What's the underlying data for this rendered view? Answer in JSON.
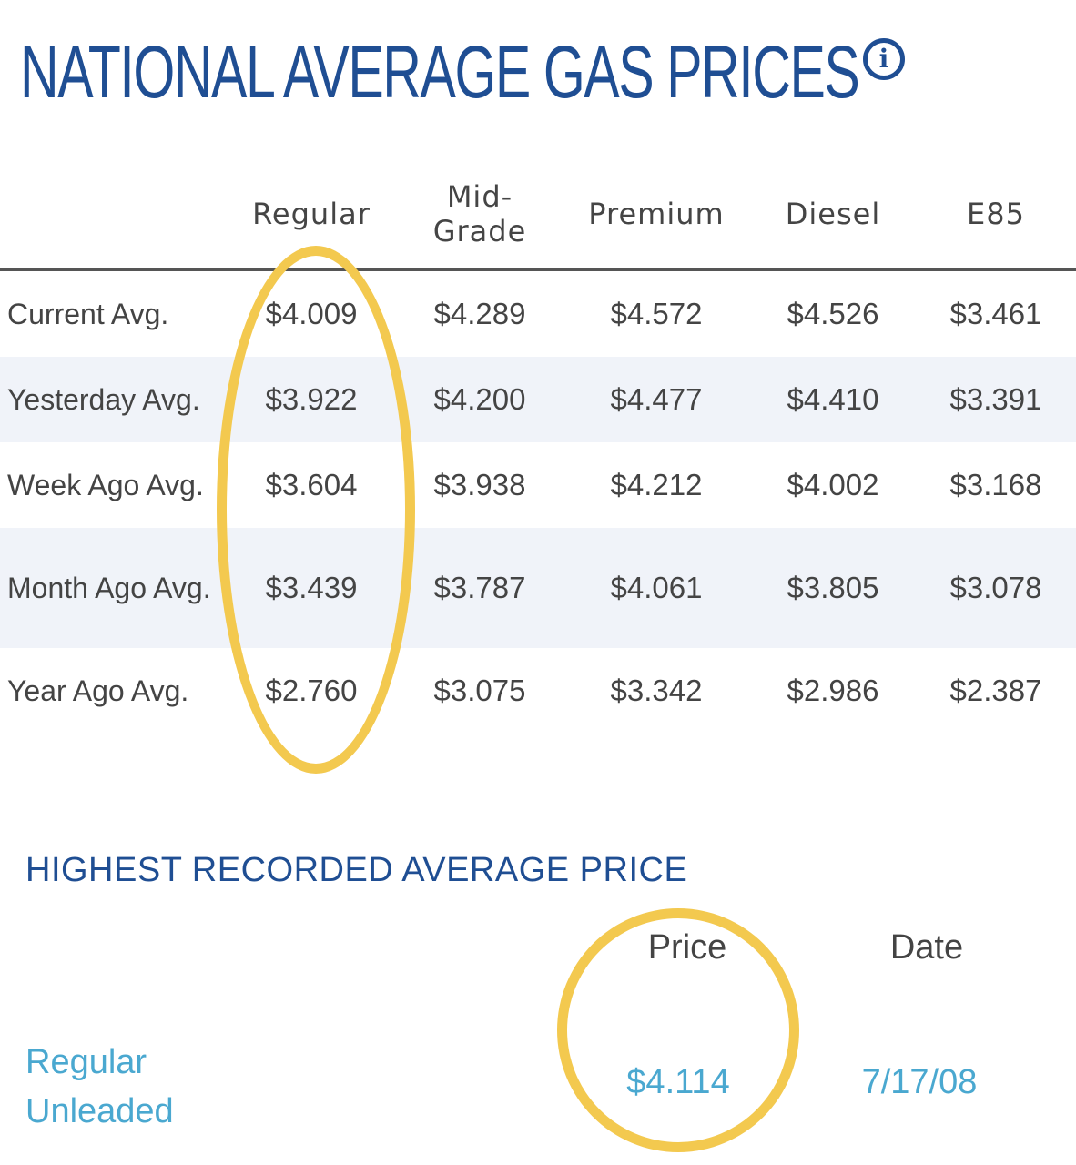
{
  "page_title": "NATIONAL AVERAGE GAS PRICES",
  "info_icon": "info-icon",
  "table": {
    "columns": [
      {
        "line1": "Regular",
        "line2": ""
      },
      {
        "line1": "Mid-",
        "line2": "Grade"
      },
      {
        "line1": "Premium",
        "line2": ""
      },
      {
        "line1": "Diesel",
        "line2": ""
      },
      {
        "line1": "E85",
        "line2": ""
      }
    ],
    "rows": [
      {
        "label": "Current Avg.",
        "values": [
          "$4.009",
          "$4.289",
          "$4.572",
          "$4.526",
          "$3.461"
        ]
      },
      {
        "label": "Yesterday Avg.",
        "values": [
          "$3.922",
          "$4.200",
          "$4.477",
          "$4.410",
          "$3.391"
        ]
      },
      {
        "label": "Week Ago Avg.",
        "values": [
          "$3.604",
          "$3.938",
          "$4.212",
          "$4.002",
          "$3.168"
        ]
      },
      {
        "label": "Month Ago Avg.",
        "values": [
          "$3.439",
          "$3.787",
          "$4.061",
          "$3.805",
          "$3.078"
        ]
      },
      {
        "label": "Year Ago Avg.",
        "values": [
          "$2.760",
          "$3.075",
          "$3.342",
          "$2.986",
          "$2.387"
        ]
      }
    ]
  },
  "highest": {
    "title": "HIGHEST RECORDED AVERAGE PRICE",
    "price_header": "Price",
    "date_header": "Date",
    "label": "Regular Unleaded",
    "price": "$4.114",
    "date": "7/17/08"
  },
  "colors": {
    "title_blue": "#1f4e93",
    "link_blue": "#4aa8d0",
    "highlight_yellow": "#f3c94f",
    "row_stripe": "#f0f3f9"
  }
}
